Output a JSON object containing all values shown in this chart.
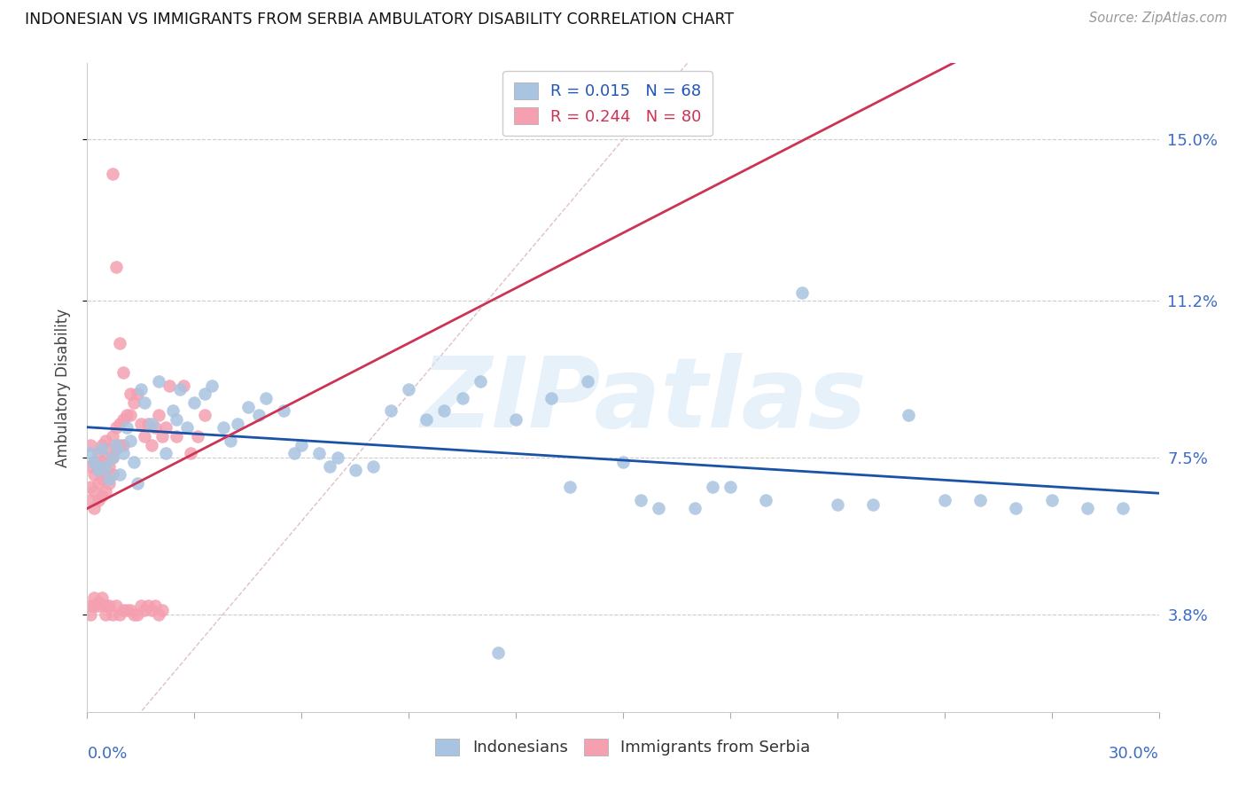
{
  "title": "INDONESIAN VS IMMIGRANTS FROM SERBIA AMBULATORY DISABILITY CORRELATION CHART",
  "source": "Source: ZipAtlas.com",
  "ylabel": "Ambulatory Disability",
  "ytick_vals": [
    0.038,
    0.075,
    0.112,
    0.15
  ],
  "ytick_labels": [
    "3.8%",
    "7.5%",
    "11.2%",
    "15.0%"
  ],
  "watermark": "ZIPatlas",
  "blue_color": "#A8C4E0",
  "pink_color": "#F4A0B0",
  "blue_line_color": "#1A52A8",
  "pink_line_color": "#CC3355",
  "diagonal_color": "#E0C0C8",
  "background_color": "#FFFFFF",
  "xlim": [
    0.0,
    0.3
  ],
  "ylim": [
    0.015,
    0.168
  ],
  "legend_items": [
    {
      "label": "R = 0.015   N = 68",
      "color": "#A8C4E0",
      "text_color": "#2255BB"
    },
    {
      "label": "R = 0.244   N = 80",
      "color": "#F4A0B0",
      "text_color": "#CC3355"
    }
  ],
  "bottom_legend": [
    {
      "label": "Indonesians",
      "color": "#A8C4E0"
    },
    {
      "label": "Immigrants from Serbia",
      "color": "#F4A0B0"
    }
  ],
  "blue_x": [
    0.001,
    0.002,
    0.003,
    0.004,
    0.005,
    0.006,
    0.007,
    0.008,
    0.009,
    0.01,
    0.011,
    0.012,
    0.013,
    0.014,
    0.015,
    0.016,
    0.018,
    0.02,
    0.022,
    0.024,
    0.025,
    0.026,
    0.028,
    0.03,
    0.033,
    0.035,
    0.038,
    0.04,
    0.042,
    0.045,
    0.048,
    0.05,
    0.055,
    0.058,
    0.06,
    0.065,
    0.068,
    0.07,
    0.075,
    0.08,
    0.085,
    0.09,
    0.095,
    0.1,
    0.105,
    0.11,
    0.12,
    0.13,
    0.14,
    0.15,
    0.16,
    0.17,
    0.18,
    0.19,
    0.2,
    0.21,
    0.22,
    0.23,
    0.24,
    0.25,
    0.26,
    0.27,
    0.28,
    0.29,
    0.175,
    0.155,
    0.135,
    0.115
  ],
  "blue_y": [
    0.076,
    0.074,
    0.072,
    0.077,
    0.073,
    0.07,
    0.075,
    0.078,
    0.071,
    0.076,
    0.082,
    0.079,
    0.074,
    0.069,
    0.091,
    0.088,
    0.083,
    0.093,
    0.076,
    0.086,
    0.084,
    0.091,
    0.082,
    0.088,
    0.09,
    0.092,
    0.082,
    0.079,
    0.083,
    0.087,
    0.085,
    0.089,
    0.086,
    0.076,
    0.078,
    0.076,
    0.073,
    0.075,
    0.072,
    0.073,
    0.086,
    0.091,
    0.084,
    0.086,
    0.089,
    0.093,
    0.084,
    0.089,
    0.093,
    0.074,
    0.063,
    0.063,
    0.068,
    0.065,
    0.114,
    0.064,
    0.064,
    0.085,
    0.065,
    0.065,
    0.063,
    0.065,
    0.063,
    0.063,
    0.068,
    0.065,
    0.068,
    0.029
  ],
  "pink_x": [
    0.001,
    0.001,
    0.001,
    0.001,
    0.002,
    0.002,
    0.002,
    0.002,
    0.003,
    0.003,
    0.003,
    0.003,
    0.004,
    0.004,
    0.004,
    0.004,
    0.005,
    0.005,
    0.005,
    0.005,
    0.006,
    0.006,
    0.006,
    0.007,
    0.007,
    0.007,
    0.008,
    0.008,
    0.009,
    0.009,
    0.01,
    0.01,
    0.011,
    0.012,
    0.013,
    0.014,
    0.015,
    0.016,
    0.017,
    0.018,
    0.019,
    0.02,
    0.021,
    0.022,
    0.023,
    0.025,
    0.027,
    0.029,
    0.031,
    0.033,
    0.001,
    0.001,
    0.002,
    0.002,
    0.003,
    0.003,
    0.004,
    0.005,
    0.005,
    0.006,
    0.007,
    0.008,
    0.009,
    0.01,
    0.011,
    0.012,
    0.013,
    0.014,
    0.015,
    0.016,
    0.017,
    0.018,
    0.019,
    0.02,
    0.021,
    0.007,
    0.008,
    0.009,
    0.01,
    0.012
  ],
  "pink_y": [
    0.078,
    0.073,
    0.068,
    0.065,
    0.074,
    0.071,
    0.067,
    0.063,
    0.076,
    0.072,
    0.069,
    0.065,
    0.078,
    0.074,
    0.07,
    0.066,
    0.079,
    0.075,
    0.071,
    0.067,
    0.077,
    0.073,
    0.069,
    0.08,
    0.075,
    0.071,
    0.082,
    0.077,
    0.083,
    0.078,
    0.084,
    0.078,
    0.085,
    0.085,
    0.088,
    0.09,
    0.083,
    0.08,
    0.083,
    0.078,
    0.082,
    0.085,
    0.08,
    0.082,
    0.092,
    0.08,
    0.092,
    0.076,
    0.08,
    0.085,
    0.038,
    0.04,
    0.04,
    0.042,
    0.041,
    0.04,
    0.042,
    0.04,
    0.038,
    0.04,
    0.038,
    0.04,
    0.038,
    0.039,
    0.039,
    0.039,
    0.038,
    0.038,
    0.04,
    0.039,
    0.04,
    0.039,
    0.04,
    0.038,
    0.039,
    0.142,
    0.12,
    0.102,
    0.095,
    0.09
  ]
}
